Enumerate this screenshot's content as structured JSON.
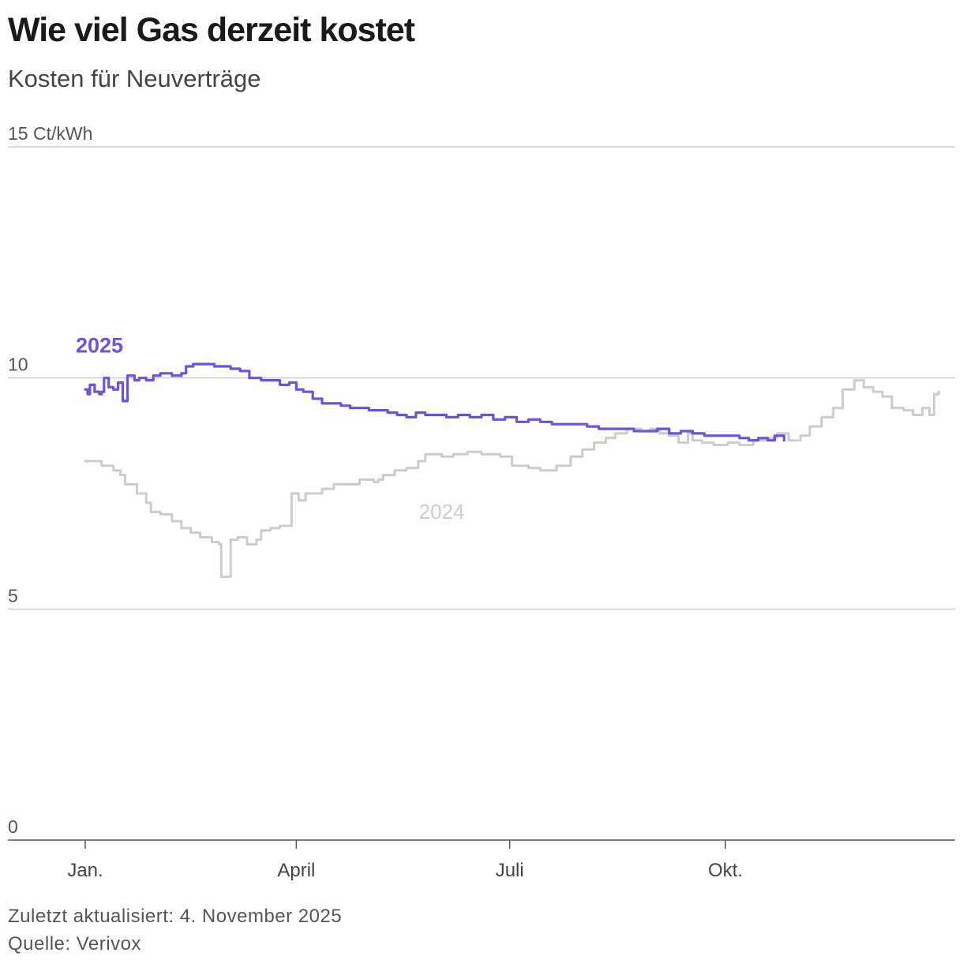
{
  "header": {
    "title": "Wie viel Gas derzeit kostet",
    "subtitle": "Kosten für Neuverträge"
  },
  "footer": {
    "updated": "Zuletzt aktualisiert: 4. November 2025",
    "source": "Quelle: Verivox"
  },
  "chart_data": {
    "type": "line",
    "title": "Wie viel Gas derzeit kostet",
    "subtitle": "Kosten für Neuverträge",
    "y_unit_label": "Ct/kWh",
    "ylim": [
      0,
      15
    ],
    "yticks": [
      {
        "value": 0,
        "label": "0"
      },
      {
        "value": 5,
        "label": "5"
      },
      {
        "value": 10,
        "label": "10"
      },
      {
        "value": 15,
        "label": "15 Ct/kWh"
      }
    ],
    "xlim_day_of_year": [
      1,
      366
    ],
    "xticks": [
      {
        "day": 1,
        "label": "Jan."
      },
      {
        "day": 91,
        "label": "April"
      },
      {
        "day": 182,
        "label": "Juli"
      },
      {
        "day": 274,
        "label": "Okt."
      }
    ],
    "grid": true,
    "series": [
      {
        "name": "2024",
        "color": "#cccccc",
        "label_position": "below-line",
        "points": [
          [
            1,
            8.2
          ],
          [
            8,
            8.1
          ],
          [
            13,
            8.0
          ],
          [
            16,
            7.9
          ],
          [
            18,
            7.7
          ],
          [
            23,
            7.5
          ],
          [
            27,
            7.3
          ],
          [
            29,
            7.1
          ],
          [
            33,
            7.05
          ],
          [
            38,
            6.9
          ],
          [
            42,
            6.75
          ],
          [
            46,
            6.65
          ],
          [
            50,
            6.55
          ],
          [
            55,
            6.45
          ],
          [
            58,
            6.4
          ],
          [
            59,
            5.7
          ],
          [
            62,
            5.7
          ],
          [
            63,
            6.5
          ],
          [
            66,
            6.55
          ],
          [
            70,
            6.4
          ],
          [
            74,
            6.5
          ],
          [
            76,
            6.7
          ],
          [
            80,
            6.75
          ],
          [
            84,
            6.8
          ],
          [
            89,
            7.5
          ],
          [
            92,
            7.35
          ],
          [
            95,
            7.5
          ],
          [
            102,
            7.6
          ],
          [
            107,
            7.7
          ],
          [
            110,
            7.7
          ],
          [
            115,
            7.7
          ],
          [
            118,
            7.8
          ],
          [
            124,
            7.75
          ],
          [
            126,
            7.8
          ],
          [
            128,
            7.9
          ],
          [
            133,
            8.0
          ],
          [
            138,
            8.05
          ],
          [
            143,
            8.2
          ],
          [
            146,
            8.35
          ],
          [
            153,
            8.3
          ],
          [
            158,
            8.35
          ],
          [
            164,
            8.4
          ],
          [
            170,
            8.35
          ],
          [
            178,
            8.3
          ],
          [
            183,
            8.1
          ],
          [
            190,
            8.05
          ],
          [
            195,
            8.0
          ],
          [
            202,
            8.1
          ],
          [
            208,
            8.3
          ],
          [
            213,
            8.45
          ],
          [
            218,
            8.6
          ],
          [
            223,
            8.7
          ],
          [
            227,
            8.8
          ],
          [
            232,
            8.9
          ],
          [
            238,
            8.85
          ],
          [
            242,
            8.9
          ],
          [
            246,
            8.8
          ],
          [
            250,
            8.75
          ],
          [
            254,
            8.6
          ],
          [
            256,
            8.6
          ],
          [
            258,
            8.8
          ],
          [
            260,
            8.65
          ],
          [
            264,
            8.6
          ],
          [
            269,
            8.55
          ],
          [
            275,
            8.6
          ],
          [
            280,
            8.55
          ],
          [
            286,
            8.65
          ],
          [
            291,
            8.7
          ],
          [
            296,
            8.8
          ],
          [
            301,
            8.65
          ],
          [
            306,
            8.75
          ],
          [
            310,
            8.95
          ],
          [
            315,
            9.15
          ],
          [
            320,
            9.35
          ],
          [
            324,
            9.75
          ],
          [
            329,
            9.95
          ],
          [
            333,
            9.8
          ],
          [
            337,
            9.7
          ],
          [
            341,
            9.6
          ],
          [
            345,
            9.35
          ],
          [
            350,
            9.3
          ],
          [
            354,
            9.2
          ],
          [
            358,
            9.35
          ],
          [
            361,
            9.2
          ],
          [
            363,
            9.65
          ],
          [
            365,
            9.7
          ]
        ]
      },
      {
        "name": "2025",
        "color": "#6b55d6",
        "label_position": "above-start",
        "points": [
          [
            1,
            9.75
          ],
          [
            2,
            9.65
          ],
          [
            3,
            9.85
          ],
          [
            5,
            9.7
          ],
          [
            7,
            9.65
          ],
          [
            8,
            9.7
          ],
          [
            9,
            10.0
          ],
          [
            11,
            9.8
          ],
          [
            13,
            9.75
          ],
          [
            15,
            9.9
          ],
          [
            17,
            9.5
          ],
          [
            19,
            10.05
          ],
          [
            22,
            9.95
          ],
          [
            24,
            10.0
          ],
          [
            27,
            9.95
          ],
          [
            30,
            10.05
          ],
          [
            33,
            10.1
          ],
          [
            38,
            10.05
          ],
          [
            42,
            10.1
          ],
          [
            44,
            10.25
          ],
          [
            47,
            10.3
          ],
          [
            53,
            10.3
          ],
          [
            56,
            10.25
          ],
          [
            59,
            10.25
          ],
          [
            63,
            10.2
          ],
          [
            67,
            10.15
          ],
          [
            71,
            10.0
          ],
          [
            76,
            9.95
          ],
          [
            80,
            9.95
          ],
          [
            84,
            9.85
          ],
          [
            88,
            9.9
          ],
          [
            91,
            9.75
          ],
          [
            94,
            9.7
          ],
          [
            98,
            9.55
          ],
          [
            102,
            9.45
          ],
          [
            106,
            9.45
          ],
          [
            110,
            9.4
          ],
          [
            114,
            9.35
          ],
          [
            118,
            9.35
          ],
          [
            122,
            9.3
          ],
          [
            126,
            9.3
          ],
          [
            130,
            9.25
          ],
          [
            134,
            9.2
          ],
          [
            138,
            9.15
          ],
          [
            142,
            9.25
          ],
          [
            146,
            9.2
          ],
          [
            150,
            9.2
          ],
          [
            155,
            9.15
          ],
          [
            160,
            9.2
          ],
          [
            165,
            9.15
          ],
          [
            170,
            9.2
          ],
          [
            175,
            9.1
          ],
          [
            180,
            9.15
          ],
          [
            185,
            9.05
          ],
          [
            190,
            9.1
          ],
          [
            195,
            9.05
          ],
          [
            200,
            9.0
          ],
          [
            205,
            9.0
          ],
          [
            210,
            9.0
          ],
          [
            215,
            8.95
          ],
          [
            220,
            8.9
          ],
          [
            225,
            8.9
          ],
          [
            230,
            8.9
          ],
          [
            235,
            8.85
          ],
          [
            240,
            8.85
          ],
          [
            245,
            8.9
          ],
          [
            250,
            8.8
          ],
          [
            255,
            8.85
          ],
          [
            260,
            8.8
          ],
          [
            265,
            8.75
          ],
          [
            270,
            8.75
          ],
          [
            275,
            8.75
          ],
          [
            280,
            8.7
          ],
          [
            284,
            8.65
          ],
          [
            288,
            8.7
          ],
          [
            292,
            8.65
          ],
          [
            295,
            8.75
          ],
          [
            299,
            8.65
          ]
        ]
      }
    ]
  }
}
